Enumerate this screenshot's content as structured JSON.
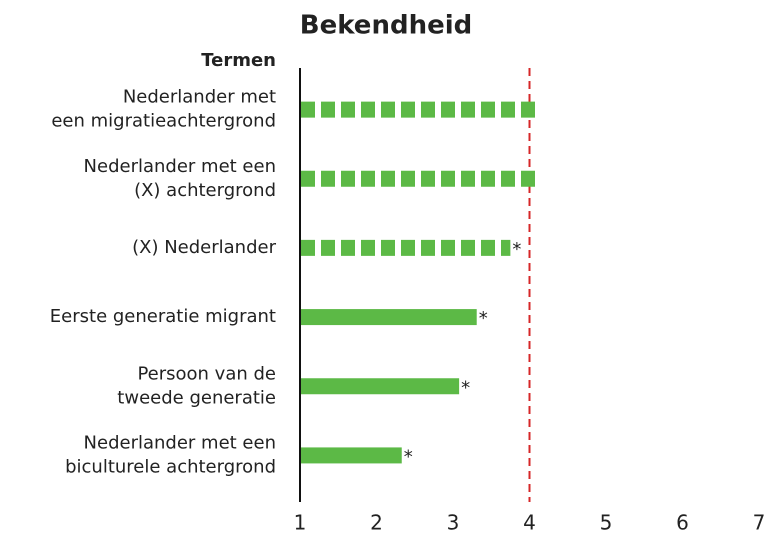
{
  "chart_data": {
    "type": "barh",
    "title": "Bekendheid",
    "y_label": "Termen",
    "categories": [
      [
        "Nederlander met",
        "een migratieachtergrond"
      ],
      [
        "Nederlander met een",
        "(X) achtergrond"
      ],
      [
        "(X) Nederlander"
      ],
      [
        "Eerste generatie migrant"
      ],
      [
        "Persoon van de",
        "tweede generatie"
      ],
      [
        "Nederlander met een",
        "biculturele achtergrond"
      ]
    ],
    "values": [
      4.12,
      4.12,
      3.75,
      3.31,
      3.08,
      2.33
    ],
    "styles": [
      "dashed",
      "dashed",
      "dashed",
      "solid",
      "solid",
      "solid"
    ],
    "annotations": [
      null,
      null,
      "*",
      "*",
      "*",
      "*"
    ],
    "color": "#5cb946",
    "xlim": [
      1,
      7
    ],
    "xticks": [
      1,
      2,
      3,
      4,
      5,
      6,
      7
    ],
    "reference_line": {
      "value": 4,
      "color": "#d62728"
    }
  }
}
